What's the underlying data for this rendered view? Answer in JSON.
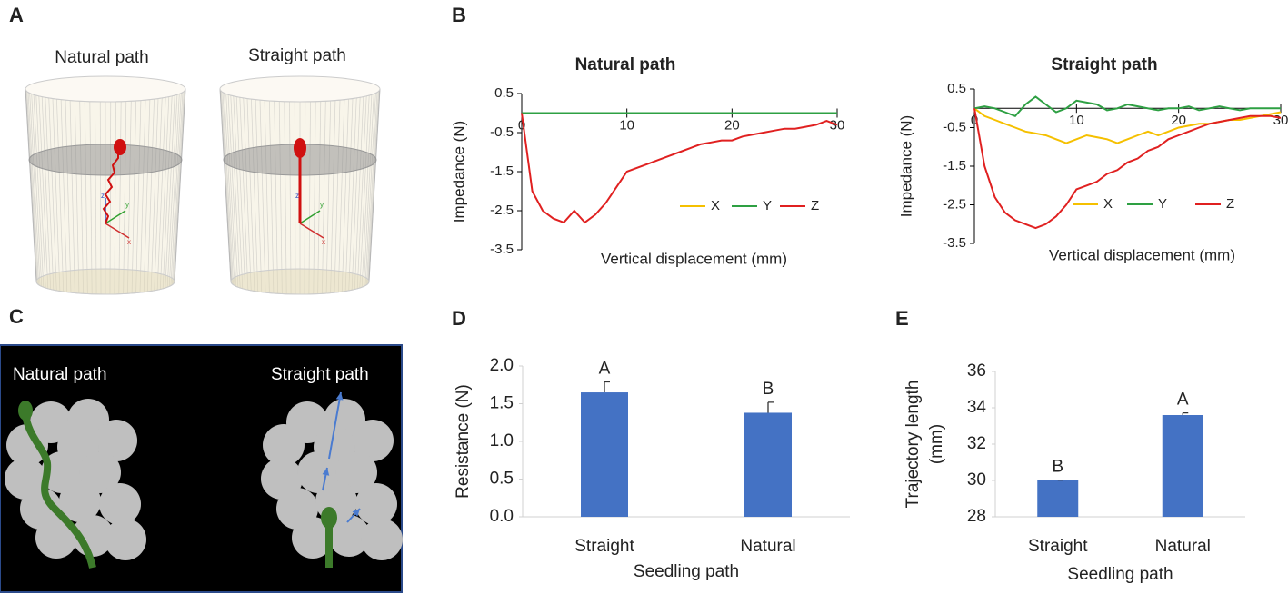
{
  "panel_labels": [
    "A",
    "B",
    "C",
    "D",
    "E"
  ],
  "panel_a": {
    "titles": [
      "Natural path",
      "Straight path"
    ],
    "axes": [
      "z",
      "y",
      "x"
    ]
  },
  "panel_c": {
    "titles": [
      "Natural path",
      "Straight path"
    ]
  },
  "chart_data": [
    {
      "type": "line",
      "title": "Natural path",
      "xlabel": "Vertical displacement (mm)",
      "ylabel": "Impedance (N)",
      "x": [
        0,
        1,
        2,
        3,
        4,
        5,
        6,
        7,
        8,
        9,
        10,
        11,
        12,
        13,
        14,
        15,
        16,
        17,
        18,
        19,
        20,
        21,
        22,
        23,
        24,
        25,
        26,
        27,
        28,
        29,
        30
      ],
      "series": [
        {
          "name": "X",
          "color": "#f5c000",
          "values": [
            0,
            0,
            0,
            0,
            0,
            0,
            0,
            0,
            0,
            0,
            0,
            0,
            0,
            0,
            0,
            0,
            0,
            0,
            0,
            0,
            0,
            0,
            0,
            0,
            0,
            0,
            0,
            0,
            0,
            0,
            0
          ]
        },
        {
          "name": "Y",
          "color": "#2ea043",
          "values": [
            0,
            0,
            0,
            0,
            0,
            0,
            0,
            0,
            0,
            0,
            0,
            0,
            0,
            0,
            0,
            0,
            0,
            0,
            0,
            0,
            0,
            0,
            0,
            0,
            0,
            0,
            0,
            0,
            0,
            0,
            0
          ]
        },
        {
          "name": "Z",
          "color": "#e02020",
          "values": [
            0,
            -2.0,
            -2.5,
            -2.7,
            -2.8,
            -2.5,
            -2.8,
            -2.6,
            -2.3,
            -1.9,
            -1.5,
            -1.4,
            -1.3,
            -1.2,
            -1.1,
            -1.0,
            -0.9,
            -0.8,
            -0.75,
            -0.7,
            -0.7,
            -0.6,
            -0.55,
            -0.5,
            -0.45,
            -0.4,
            -0.4,
            -0.35,
            -0.3,
            -0.2,
            -0.3
          ]
        }
      ],
      "xlim": [
        0,
        30
      ],
      "xticks": [
        0,
        10,
        20,
        30
      ],
      "ylim": [
        -3.5,
        0.5
      ],
      "yticks": [
        0.5,
        -0.5,
        -1.5,
        -2.5,
        -3.5
      ]
    },
    {
      "type": "line",
      "title": "Straight path",
      "xlabel": "Vertical displacement (mm)",
      "ylabel": "Impedance (N)",
      "x": [
        0,
        1,
        2,
        3,
        4,
        5,
        6,
        7,
        8,
        9,
        10,
        11,
        12,
        13,
        14,
        15,
        16,
        17,
        18,
        19,
        20,
        21,
        22,
        23,
        24,
        25,
        26,
        27,
        28,
        29,
        30
      ],
      "series": [
        {
          "name": "X",
          "color": "#f5c000",
          "values": [
            0,
            -0.2,
            -0.3,
            -0.4,
            -0.5,
            -0.6,
            -0.65,
            -0.7,
            -0.8,
            -0.9,
            -0.8,
            -0.7,
            -0.75,
            -0.8,
            -0.9,
            -0.8,
            -0.7,
            -0.6,
            -0.7,
            -0.6,
            -0.5,
            -0.45,
            -0.4,
            -0.4,
            -0.35,
            -0.3,
            -0.3,
            -0.25,
            -0.2,
            -0.15,
            -0.1
          ]
        },
        {
          "name": "Y",
          "color": "#2ea043",
          "values": [
            0,
            0.05,
            0,
            -0.1,
            -0.2,
            0.1,
            0.3,
            0.1,
            -0.1,
            0,
            0.2,
            0.15,
            0.1,
            -0.05,
            0,
            0.1,
            0.05,
            0,
            -0.05,
            0,
            0,
            0.05,
            -0.05,
            0,
            0.05,
            0,
            -0.05,
            0,
            0,
            0,
            0
          ]
        },
        {
          "name": "Z",
          "color": "#e02020",
          "values": [
            0,
            -1.5,
            -2.3,
            -2.7,
            -2.9,
            -3.0,
            -3.1,
            -3.0,
            -2.8,
            -2.5,
            -2.1,
            -2.0,
            -1.9,
            -1.7,
            -1.6,
            -1.4,
            -1.3,
            -1.1,
            -1.0,
            -0.8,
            -0.7,
            -0.6,
            -0.5,
            -0.4,
            -0.35,
            -0.3,
            -0.25,
            -0.2,
            -0.2,
            -0.2,
            -0.25
          ]
        }
      ],
      "xlim": [
        0,
        30
      ],
      "xticks": [
        0,
        10,
        20,
        30
      ],
      "ylim": [
        -3.5,
        0.5
      ],
      "yticks": [
        0.5,
        -0.5,
        -1.5,
        -2.5,
        -3.5
      ]
    },
    {
      "type": "bar",
      "xlabel": "Seedling path",
      "ylabel": "Resistance (N)",
      "color": "#4472c4",
      "categories": [
        "Straight",
        "Natural"
      ],
      "values": [
        1.65,
        1.38
      ],
      "errors": [
        0.14,
        0.14
      ],
      "letters": [
        "A",
        "B"
      ],
      "ylim": [
        0,
        2
      ],
      "yticks": [
        {
          "value": 0,
          "label": "0.0"
        },
        0.5,
        {
          "value": 1,
          "label": "1.0"
        },
        1.5,
        {
          "value": 2,
          "label": "2.0"
        }
      ]
    },
    {
      "type": "bar",
      "xlabel": "Seedling path",
      "ylabel": "Trajectory length (mm)",
      "color": "#4472c4",
      "categories": [
        "Straight",
        "Natural"
      ],
      "values": [
        30.0,
        33.6
      ],
      "errors": [
        0.02,
        0.12
      ],
      "letters": [
        "B",
        "A"
      ],
      "ylim": [
        28,
        36
      ],
      "yticks": [
        28,
        30,
        32,
        34,
        36
      ]
    }
  ]
}
